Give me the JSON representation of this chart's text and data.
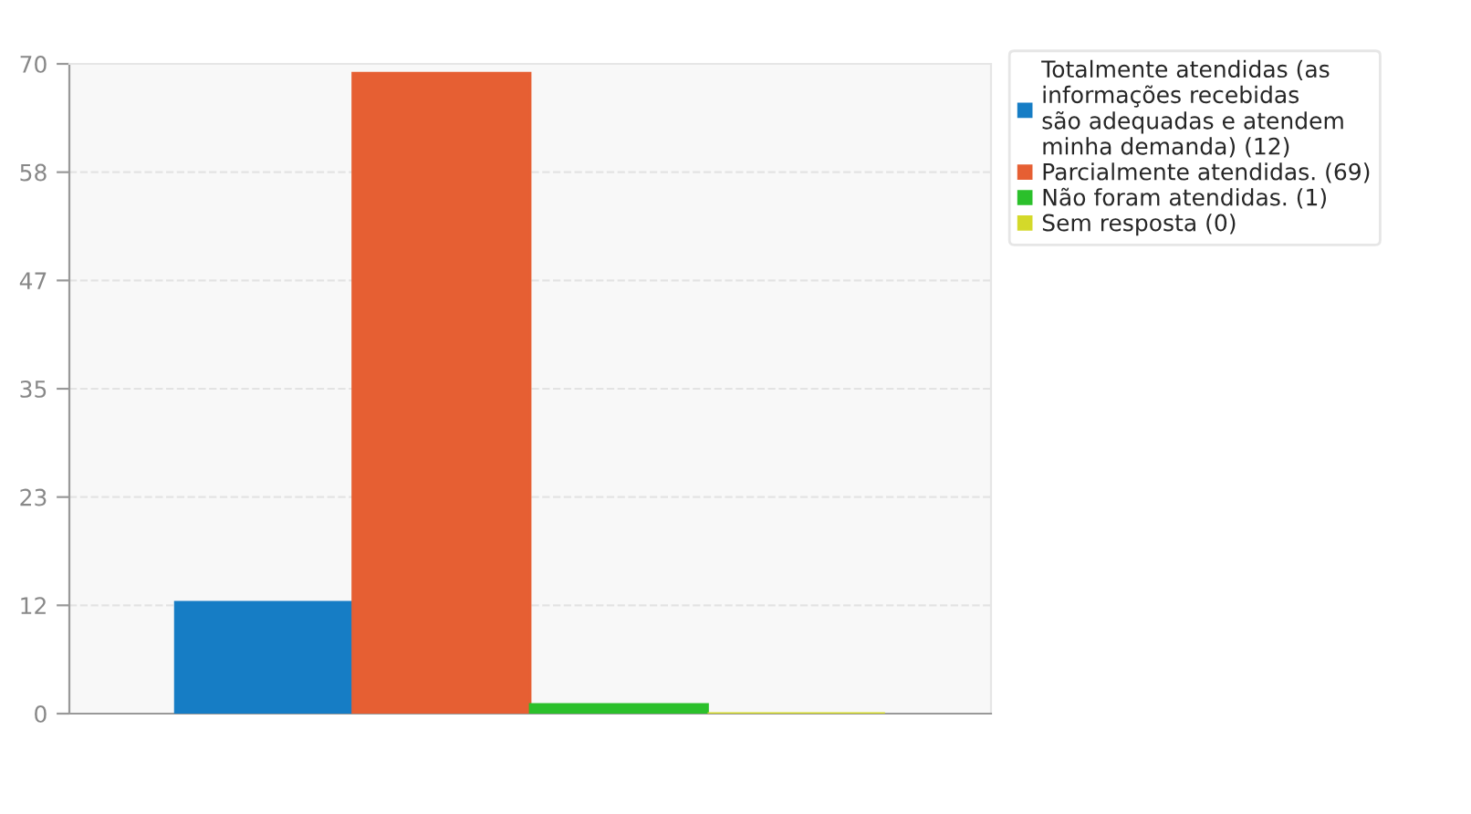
{
  "chart_data": {
    "type": "bar",
    "categories": [
      null
    ],
    "series": [
      {
        "name": "Totalmente atendidas (as\ninformações recebidas\nsão adequadas e atendem\nminha demanda) (12)",
        "color": "#167dc5",
        "values": [
          12
        ]
      },
      {
        "name": "Parcialmente atendidas. (69)",
        "color": "#e65f33",
        "values": [
          69
        ]
      },
      {
        "name": "Não foram atendidas. (1)",
        "color": "#2bc02b",
        "values": [
          1
        ]
      },
      {
        "name": "Sem resposta (0)",
        "color": "#d4d92a",
        "values": [
          0
        ]
      }
    ],
    "ylim": [
      0,
      70
    ],
    "yticks": [
      0,
      {
        "value": 11.667,
        "label": "12"
      },
      {
        "value": 23.333,
        "label": "23"
      },
      35,
      {
        "value": 46.667,
        "label": "47"
      },
      {
        "value": 58.333,
        "label": "58"
      },
      70
    ],
    "grid": "y",
    "legend": "top right"
  }
}
